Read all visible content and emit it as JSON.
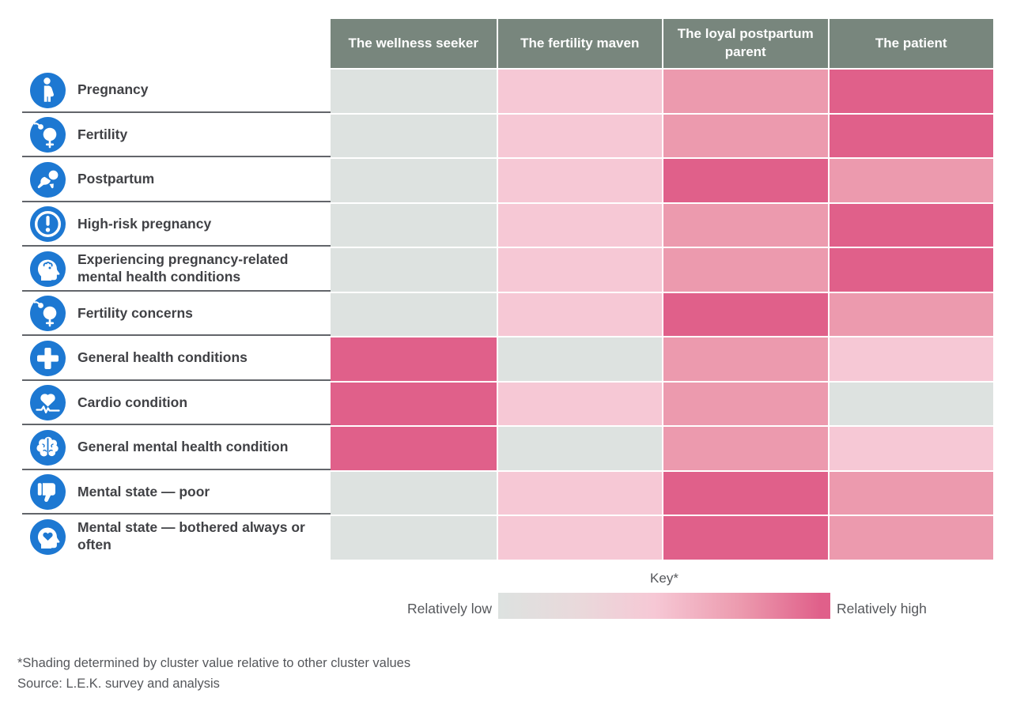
{
  "columns": [
    "The wellness seeker",
    "The fertility maven",
    "The loyal postpartum parent",
    "The patient"
  ],
  "rows": [
    {
      "label": "Pregnancy",
      "icon": "pregnant-woman-icon",
      "values": [
        0,
        1,
        2,
        3
      ]
    },
    {
      "label": "Fertility",
      "icon": "fertility-icon",
      "values": [
        0,
        1,
        2,
        3
      ]
    },
    {
      "label": "Postpartum",
      "icon": "crawling-baby-icon",
      "values": [
        0,
        1,
        3,
        2
      ]
    },
    {
      "label": "High-risk pregnancy",
      "icon": "exclamation-circle-icon",
      "values": [
        0,
        1,
        2,
        3
      ]
    },
    {
      "label": "Experiencing pregnancy-related mental health conditions",
      "icon": "head-brain-icon",
      "values": [
        0,
        1,
        2,
        3
      ]
    },
    {
      "label": "Fertility concerns",
      "icon": "fertility-icon",
      "values": [
        0,
        1,
        3,
        2
      ]
    },
    {
      "label": "General health conditions",
      "icon": "medical-cross-icon",
      "values": [
        3,
        0,
        2,
        1
      ]
    },
    {
      "label": "Cardio condition",
      "icon": "heart-ecg-icon",
      "values": [
        3,
        1,
        2,
        0
      ]
    },
    {
      "label": "General mental health condition",
      "icon": "brain-icon",
      "values": [
        3,
        0,
        2,
        1
      ]
    },
    {
      "label": "Mental state — poor",
      "icon": "thumbs-down-icon",
      "values": [
        0,
        1,
        3,
        2
      ]
    },
    {
      "label": "Mental state — bothered always or often",
      "icon": "head-heart-icon",
      "values": [
        0,
        1,
        3,
        2
      ]
    }
  ],
  "legend": {
    "title": "Key*",
    "low_label": "Relatively low",
    "high_label": "Relatively high"
  },
  "footnotes": {
    "shading_note": "*Shading determined by cluster value relative to other cluster values",
    "source": "Source: L.E.K. survey and analysis"
  },
  "colors": {
    "scale": [
      "#dde2e0",
      "#f6c8d5",
      "#ec9aae",
      "#e0608a"
    ],
    "header_bg": "#78867d",
    "icon_blue": "#1d78d2",
    "label_text": "#404145",
    "separator": "#62656a"
  },
  "chart_data": {
    "type": "heatmap",
    "title": "",
    "columns": [
      "The wellness seeker",
      "The fertility maven",
      "The loyal postpartum parent",
      "The patient"
    ],
    "rows": [
      "Pregnancy",
      "Fertility",
      "Postpartum",
      "High-risk pregnancy",
      "Experiencing pregnancy-related mental health conditions",
      "Fertility concerns",
      "General health conditions",
      "Cardio condition",
      "General mental health condition",
      "Mental state — poor",
      "Mental state — bothered always or often"
    ],
    "values": [
      [
        0,
        1,
        2,
        3
      ],
      [
        0,
        1,
        2,
        3
      ],
      [
        0,
        1,
        3,
        2
      ],
      [
        0,
        1,
        2,
        3
      ],
      [
        0,
        1,
        2,
        3
      ],
      [
        0,
        1,
        3,
        2
      ],
      [
        3,
        0,
        2,
        1
      ],
      [
        3,
        1,
        2,
        0
      ],
      [
        3,
        0,
        2,
        1
      ],
      [
        0,
        1,
        3,
        2
      ],
      [
        0,
        1,
        3,
        2
      ]
    ],
    "value_scale": {
      "0": "relatively low",
      "1": "low-mid",
      "2": "mid-high",
      "3": "relatively high"
    },
    "legend": {
      "position": "bottom",
      "low": "Relatively low",
      "high": "Relatively high",
      "title": "Key*"
    },
    "grid": false
  }
}
